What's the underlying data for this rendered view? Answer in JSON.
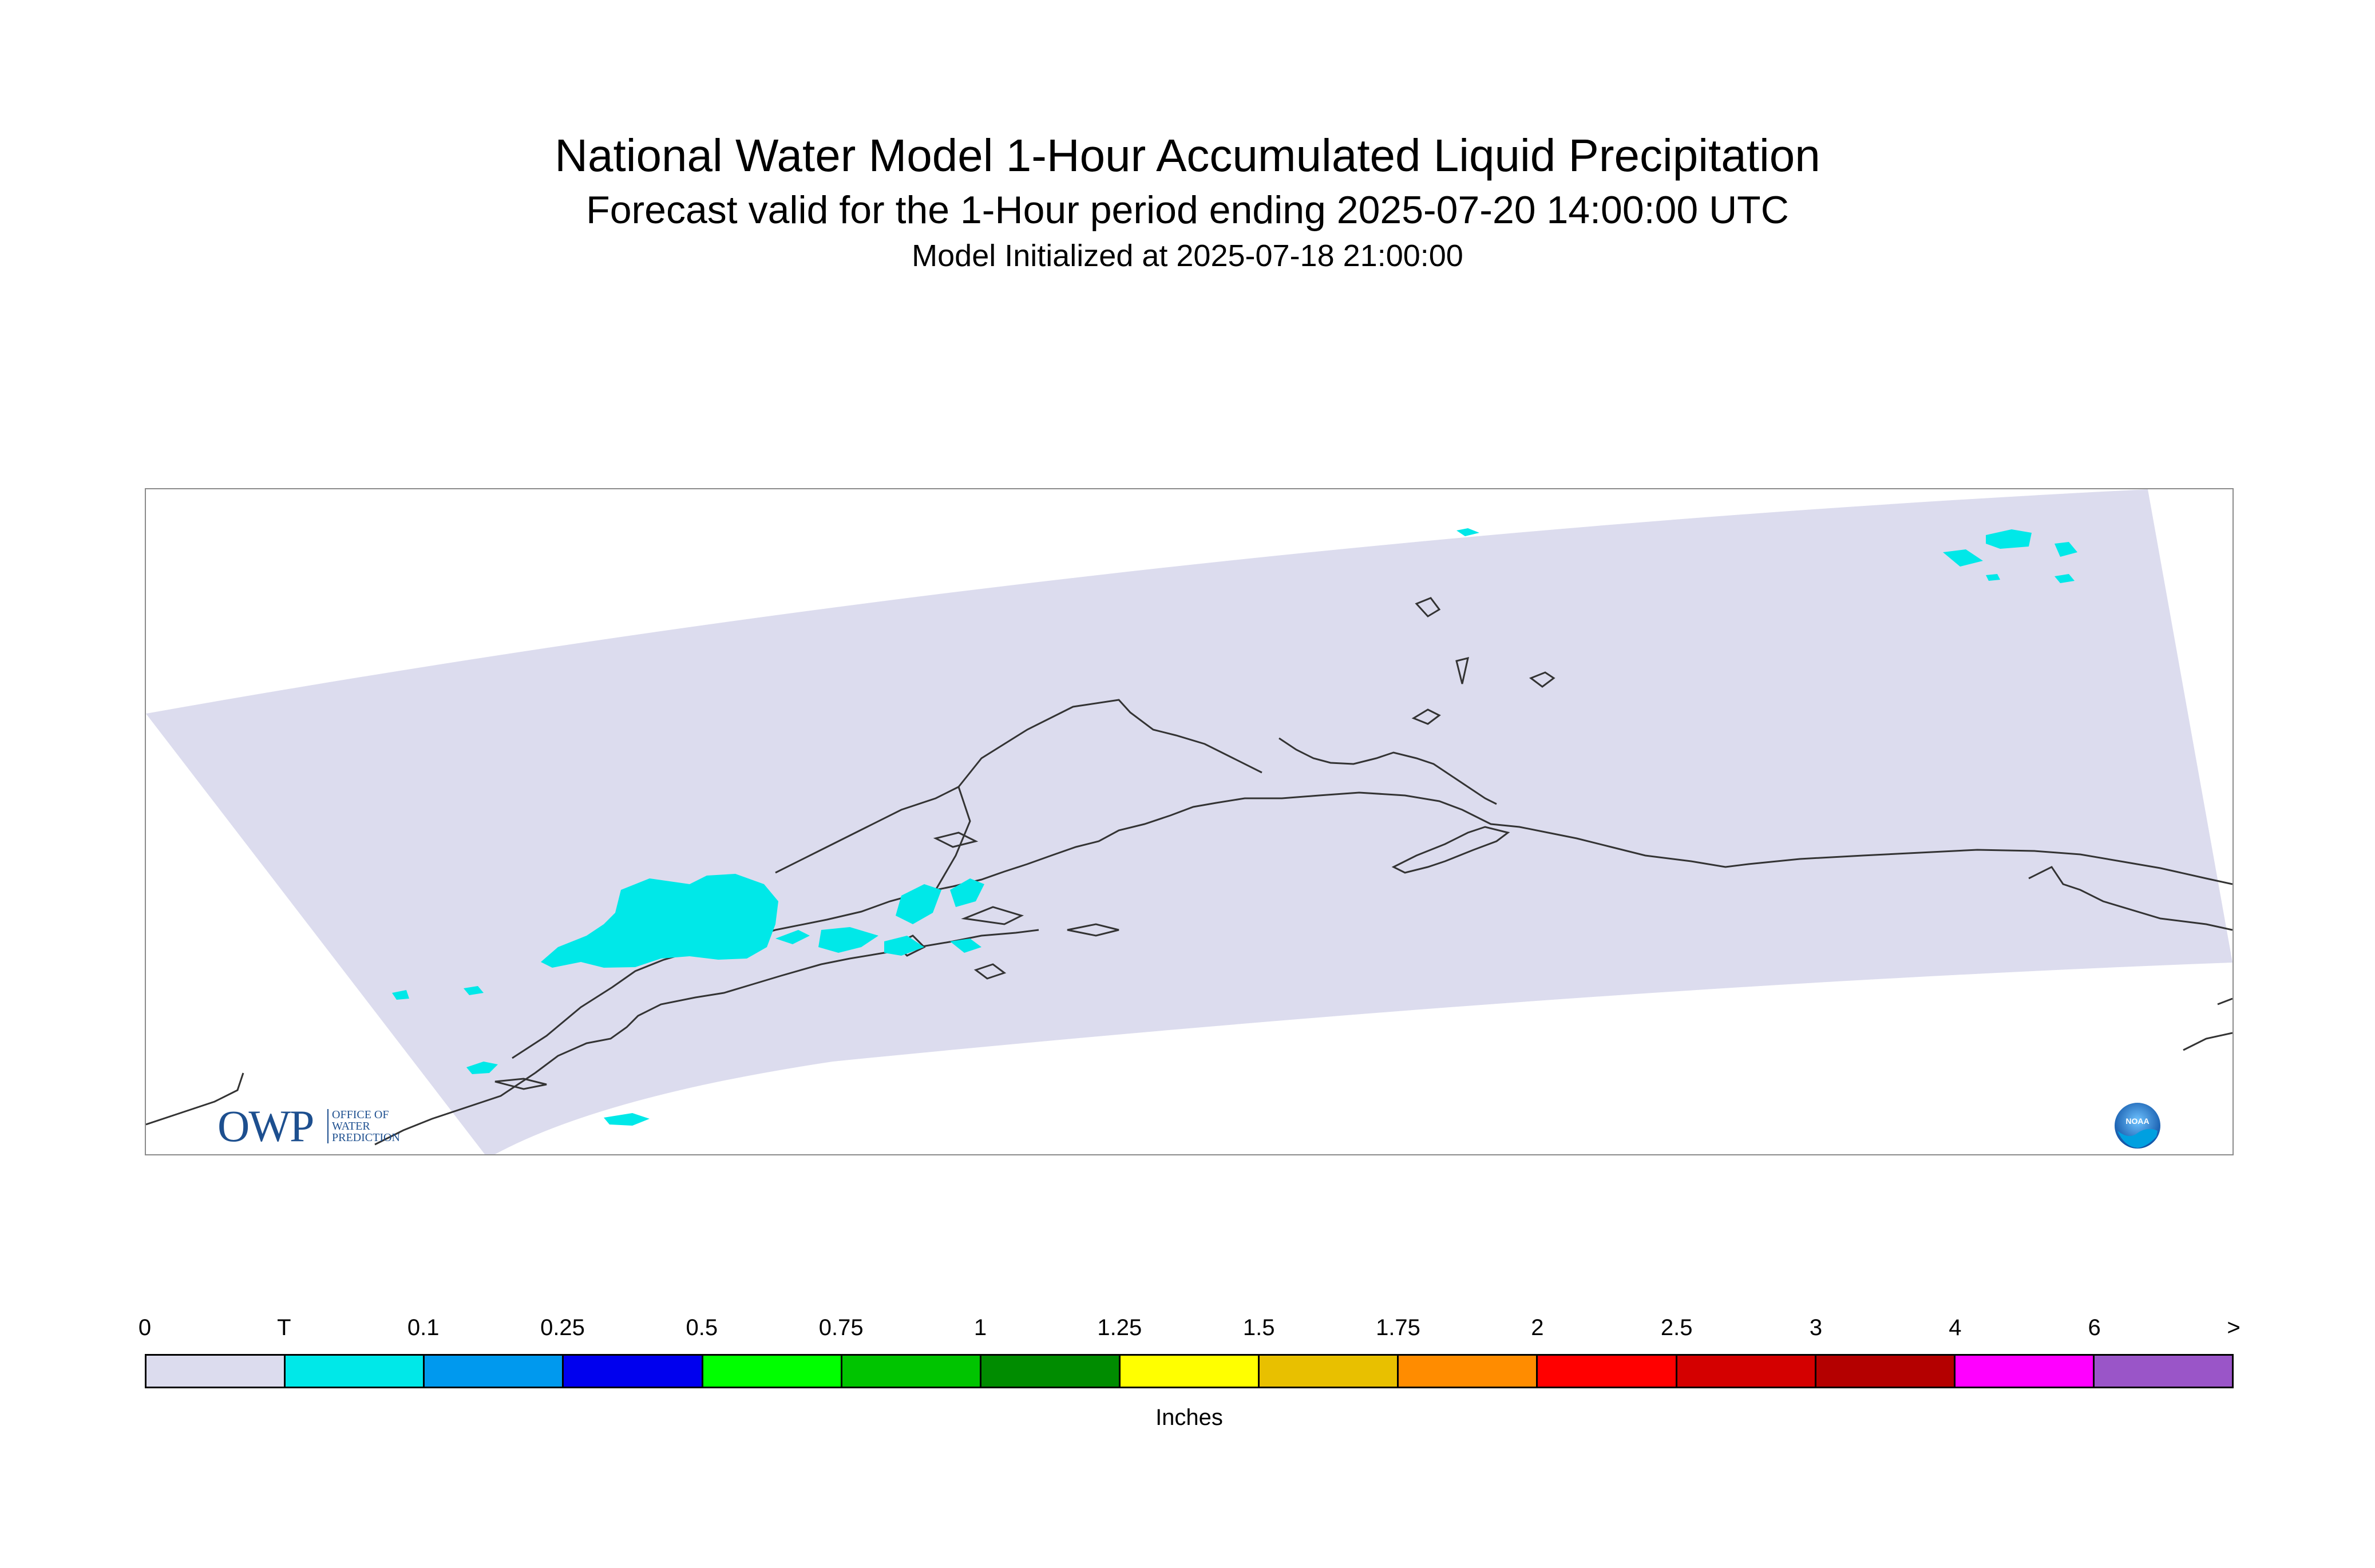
{
  "header": {
    "title": "National Water Model 1-Hour Accumulated Liquid Precipitation",
    "subtitle": "Forecast valid for the 1-Hour period ending 2025-07-20 14:00:00 UTC",
    "init_line": "Model Initialized at 2025-07-18 21:00:00"
  },
  "map": {
    "domain_fill_color": "#dcdcee",
    "precip_color": "#00e8e8",
    "coastline_color": "#333333",
    "frame_color": "#8a8a8a"
  },
  "logos": {
    "owp_letters": "OWP",
    "owp_subtext": "OFFICE OF\nWATER\nPREDICTION",
    "noaa_text": "NOAA"
  },
  "legend": {
    "tick_labels": [
      "0",
      "T",
      "0.1",
      "0.25",
      "0.5",
      "0.75",
      "1",
      "1.25",
      "1.5",
      "1.75",
      "2",
      "2.5",
      "3",
      "4",
      "6",
      ">"
    ],
    "colors": [
      "#dcdcee",
      "#00e8e8",
      "#0099ee",
      "#0000ee",
      "#00ff00",
      "#00c400",
      "#008c00",
      "#ffff00",
      "#e8c000",
      "#ff8c00",
      "#ff0000",
      "#d40000",
      "#b40000",
      "#ff00ff",
      "#9a55c8"
    ],
    "units_label": "Inches"
  }
}
